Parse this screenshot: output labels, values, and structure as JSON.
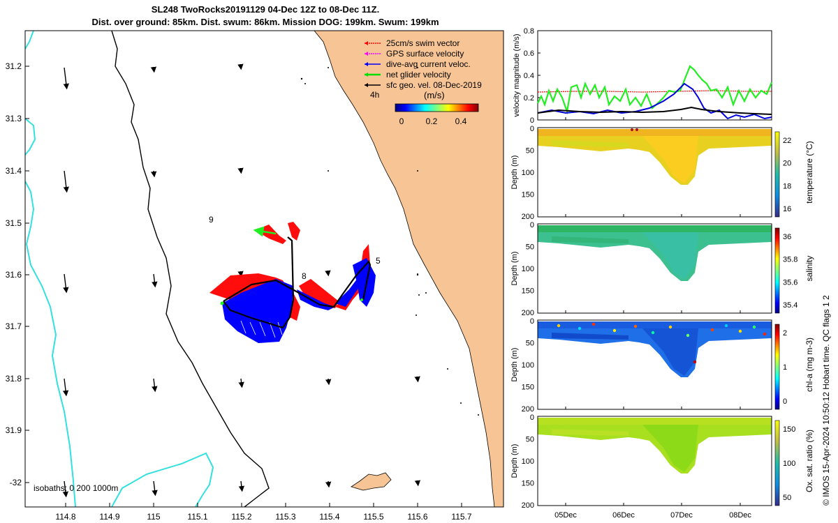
{
  "title_line1": "SL248 TwoRocks20191129 04-Dec 12Z to 08-Dec 11Z.",
  "title_line2": "Dist. over ground: 85km. Dist. swum: 86km. Mission DOG: 199km. Swum: 199km",
  "map": {
    "lon_ticks": [
      "114.8",
      "114.9",
      "115",
      "115.1",
      "115.2",
      "115.3",
      "115.4",
      "115.5",
      "115.6",
      "115.7"
    ],
    "lat_ticks": [
      "31.2",
      "31.3",
      "31.4",
      "31.5",
      "31.6",
      "31.7",
      "31.8",
      "31.9",
      "-32"
    ],
    "legend": [
      {
        "label": "25cm/s swim vector",
        "color": "#ff0000"
      },
      {
        "label": "GPS surface velocity",
        "color": "#ff00ff"
      },
      {
        "label": "dive-avg current veloc.",
        "color": "#0000ff"
      },
      {
        "label": "net glider velocity",
        "color": "#00dd00"
      },
      {
        "label": "sfc geo. vel. 08-Dec-2019",
        "color": "#000000"
      }
    ],
    "colorbar_unit": "(m/s)",
    "colorbar_ticks": [
      "0",
      "0.2",
      "0.4"
    ],
    "time_label": "4h",
    "waypoints": [
      "9",
      "8",
      "5"
    ],
    "isobaths_label": "isobaths: 0   200  1000m",
    "land_color": "#f7c595",
    "isobath_200_color": "#000000",
    "isobath_1000_color": "#33e0e0"
  },
  "velocity_panel": {
    "ylabel": "velocity magnitude (m/s)",
    "yticks": [
      "0",
      "0.2",
      "0.4",
      "0.6",
      "0.8"
    ],
    "series_colors": {
      "red": "#ff0000",
      "green": "#22ee22",
      "blue": "#0000dd",
      "black": "#000000"
    }
  },
  "sections": [
    {
      "name": "temperature",
      "ylabel": "Depth (m)",
      "cblabel": "temperature (°C)",
      "cbticks": [
        "22",
        "20",
        "18",
        "16"
      ],
      "depth_ticks": [
        "0",
        "50",
        "100",
        "150",
        "200"
      ]
    },
    {
      "name": "salinity",
      "ylabel": "Depth (m)",
      "cblabel": "salinity",
      "cbticks": [
        "36",
        "35.8",
        "35.6",
        "35.4"
      ],
      "depth_ticks": [
        "0",
        "50",
        "100",
        "150",
        "200"
      ]
    },
    {
      "name": "chla",
      "ylabel": "Depth (m)",
      "cblabel": "chl-a (mg m-3)",
      "cbticks": [
        "2",
        "1",
        "0"
      ],
      "depth_ticks": [
        "0",
        "50",
        "100",
        "150",
        "200"
      ]
    },
    {
      "name": "oxygen",
      "ylabel": "Depth (m)",
      "cblabel": "Ox. sat. ratio (%)",
      "cbticks": [
        "150",
        "100",
        "50"
      ],
      "depth_ticks": [
        "0",
        "50",
        "100",
        "150",
        "200"
      ]
    }
  ],
  "time_ticks": [
    "05Dec",
    "06Dec",
    "07Dec",
    "08Dec"
  ],
  "footer_note": "© IMOS 15-Apr-2024 10:50:12 Hobart time. QC flags 1  2"
}
